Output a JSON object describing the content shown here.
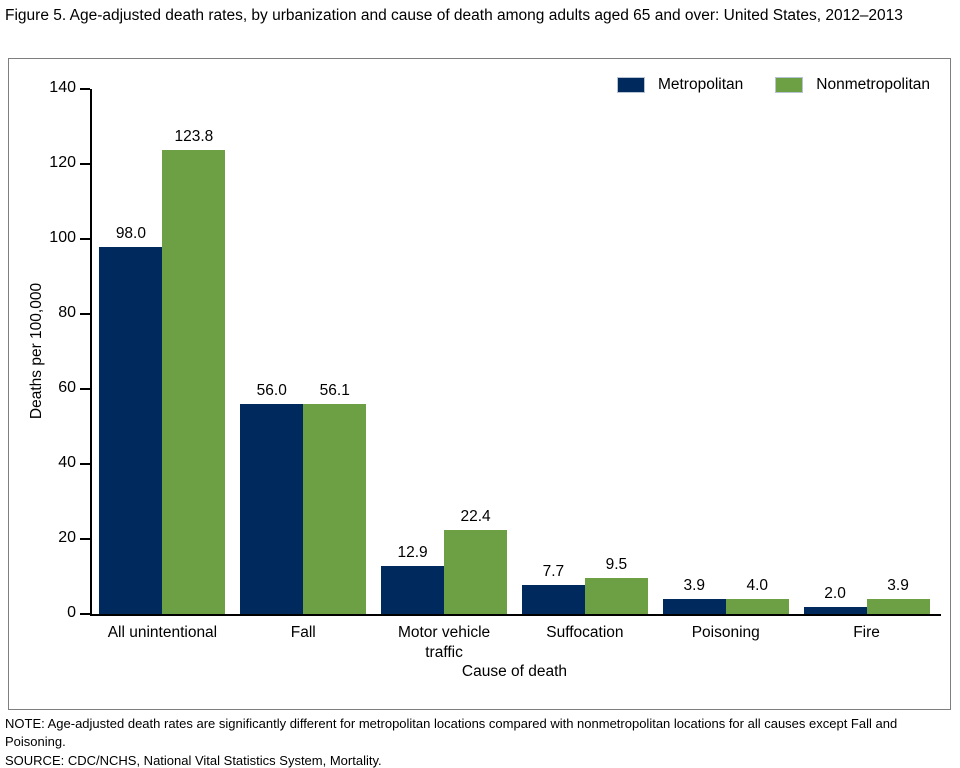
{
  "figure_title": "Figure 5. Age-adjusted death rates, by urbanization and cause of death among adults aged 65 and over: United States, 2012–2013",
  "chart_data": {
    "type": "bar",
    "title": "Figure 5. Age-adjusted death rates, by urbanization and cause of death among adults aged 65 and over: United States, 2012–2013",
    "categories": [
      "All unintentional",
      "Fall",
      "Motor vehicle traffic",
      "Suffocation",
      "Poisoning",
      "Fire"
    ],
    "series": [
      {
        "name": "Metropolitan",
        "color": "#002a5e",
        "values": [
          98.0,
          56.0,
          12.9,
          7.7,
          3.9,
          2.0
        ]
      },
      {
        "name": "Nonmetropolitan",
        "color": "#6da044",
        "values": [
          123.8,
          56.1,
          22.4,
          9.5,
          4.0,
          3.9
        ]
      }
    ],
    "xlabel": "Cause of death",
    "ylabel": "Deaths per 100,000",
    "ylim": [
      0,
      140
    ],
    "yticks": [
      0,
      20,
      40,
      60,
      80,
      100,
      120,
      140
    ],
    "grid": false,
    "legend_position": "top-right",
    "value_labels": true
  },
  "notes": {
    "note": "NOTE: Age-adjusted death rates are significantly different for metropolitan locations compared with nonmetropolitan locations for all causes except Fall and Poisoning.",
    "source": "SOURCE: CDC/NCHS, National Vital Statistics System, Mortality."
  }
}
